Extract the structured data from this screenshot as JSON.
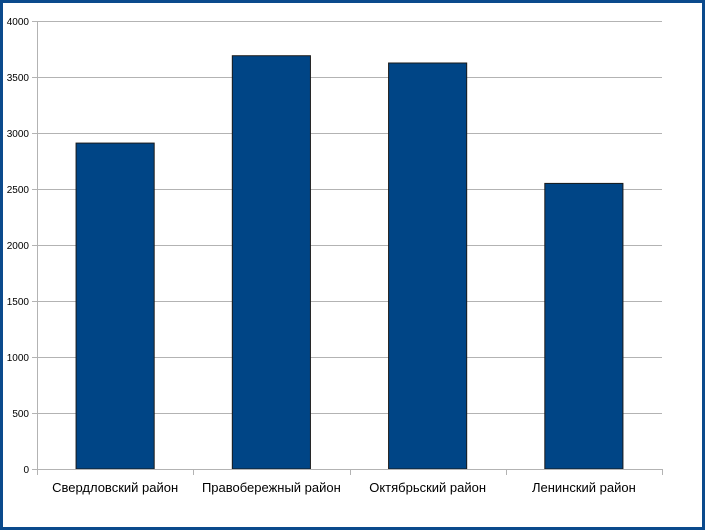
{
  "chart_data": {
    "type": "bar",
    "title": "",
    "xlabel": "",
    "ylabel": "",
    "categories": [
      "Свердловский район",
      "Правобережный район",
      "Октябрьский район",
      "Ленинский район"
    ],
    "values": [
      2910,
      3690,
      3625,
      2550
    ],
    "ylim": [
      0,
      4000
    ],
    "yticks": [
      0,
      500,
      1000,
      1500,
      2000,
      2500,
      3000,
      3500,
      4000
    ],
    "grid": true,
    "legend": "none",
    "colors": {
      "bar": "#004586",
      "bar_stroke": "#1a1a1a",
      "grid": "#b3b3b3",
      "axis": "#b3b3b3",
      "frame": "#0b4a8c"
    }
  }
}
